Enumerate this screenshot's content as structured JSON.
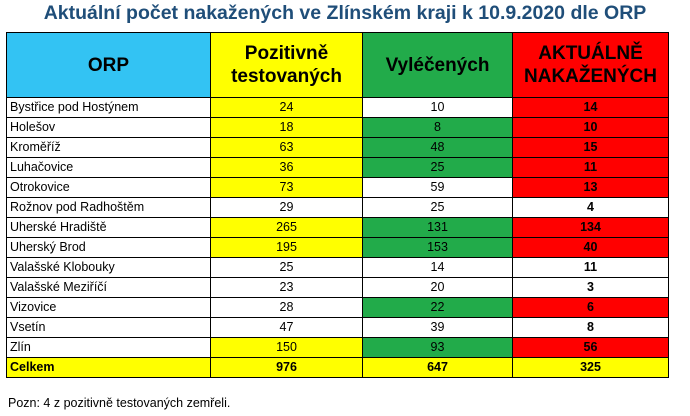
{
  "title": "Aktuální počet nakažených ve Zlínském kraji k 10.9.2020 dle ORP",
  "headers": {
    "orp": "ORP",
    "pos_line1": "Pozitivně",
    "pos_line2": "testovaných",
    "vyl": "Vyléčených",
    "akt_line1": "AKTUÁLNĚ",
    "akt_line2": "NAKAŽENÝCH"
  },
  "colors": {
    "header_blue": "#33c3f3",
    "yellow": "#ffff00",
    "green": "#22ab4a",
    "red": "#ff0000",
    "white": "#ffffff",
    "title": "#1f4e79"
  },
  "rows": [
    {
      "name": "Bystřice pod Hostýnem",
      "pos": "24",
      "vyl": "10",
      "akt": "14",
      "pos_color": "yellow",
      "vyl_color": "white",
      "akt_color": "red"
    },
    {
      "name": "Holešov",
      "pos": "18",
      "vyl": "8",
      "akt": "10",
      "pos_color": "yellow",
      "vyl_color": "green",
      "akt_color": "red"
    },
    {
      "name": "Kroměříž",
      "pos": "63",
      "vyl": "48",
      "akt": "15",
      "pos_color": "yellow",
      "vyl_color": "green",
      "akt_color": "red"
    },
    {
      "name": "Luhačovice",
      "pos": "36",
      "vyl": "25",
      "akt": "11",
      "pos_color": "yellow",
      "vyl_color": "green",
      "akt_color": "red"
    },
    {
      "name": "Otrokovice",
      "pos": "73",
      "vyl": "59",
      "akt": "13",
      "pos_color": "yellow",
      "vyl_color": "white",
      "akt_color": "red"
    },
    {
      "name": "Rožnov pod Radhoštěm",
      "pos": "29",
      "vyl": "25",
      "akt": "4",
      "pos_color": "white",
      "vyl_color": "white",
      "akt_color": "white"
    },
    {
      "name": "Uherské Hradiště",
      "pos": "265",
      "vyl": "131",
      "akt": "134",
      "pos_color": "yellow",
      "vyl_color": "green",
      "akt_color": "red"
    },
    {
      "name": "Uherský Brod",
      "pos": "195",
      "vyl": "153",
      "akt": "40",
      "pos_color": "yellow",
      "vyl_color": "green",
      "akt_color": "red"
    },
    {
      "name": "Valašské Klobouky",
      "pos": "25",
      "vyl": "14",
      "akt": "11",
      "pos_color": "white",
      "vyl_color": "white",
      "akt_color": "white"
    },
    {
      "name": "Valašské Meziříčí",
      "pos": "23",
      "vyl": "20",
      "akt": "3",
      "pos_color": "white",
      "vyl_color": "white",
      "akt_color": "white"
    },
    {
      "name": "Vizovice",
      "pos": "28",
      "vyl": "22",
      "akt": "6",
      "pos_color": "white",
      "vyl_color": "green",
      "akt_color": "red"
    },
    {
      "name": "Vsetín",
      "pos": "47",
      "vyl": "39",
      "akt": "8",
      "pos_color": "white",
      "vyl_color": "white",
      "akt_color": "white"
    },
    {
      "name": "Zlín",
      "pos": "150",
      "vyl": "93",
      "akt": "56",
      "pos_color": "yellow",
      "vyl_color": "green",
      "akt_color": "red"
    }
  ],
  "total": {
    "name": "Celkem",
    "pos": "976",
    "vyl": "647",
    "akt": "325"
  },
  "note": "Pozn: 4 z pozitivně testovaných zemřeli."
}
